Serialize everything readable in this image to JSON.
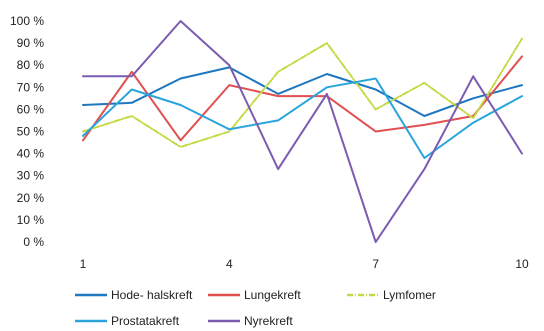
{
  "chart_data": {
    "type": "line",
    "x": [
      1,
      2,
      3,
      4,
      5,
      6,
      7,
      8,
      9,
      10
    ],
    "x_tick_labels": [
      "1",
      "4",
      "7",
      "10"
    ],
    "x_tick_values": [
      1,
      4,
      7,
      10
    ],
    "y_tick_labels": [
      "0 %",
      "10 %",
      "20 %",
      "30 %",
      "40 %",
      "50 %",
      "60 %",
      "70 %",
      "80 %",
      "90 %",
      "100 %"
    ],
    "ylim": [
      0,
      100
    ],
    "grid": false,
    "legend_position": "bottom",
    "series": [
      {
        "name": "Hode- halskreft",
        "color": "#1f77c0",
        "values": [
          62,
          63,
          74,
          79,
          67,
          76,
          69,
          57,
          65,
          71
        ]
      },
      {
        "name": "Lungekreft",
        "color": "#e05050",
        "values": [
          46,
          77,
          46,
          71,
          66,
          66,
          50,
          53,
          57,
          84
        ]
      },
      {
        "name": "Lymfomer",
        "color": "#c5d945",
        "dashed": true,
        "values": [
          50,
          57,
          43,
          50,
          77,
          90,
          60,
          72,
          56,
          92
        ]
      },
      {
        "name": "Prostatakreft",
        "color": "#2aa5dc",
        "values": [
          48,
          69,
          62,
          51,
          55,
          70,
          74,
          38,
          54,
          66
        ]
      },
      {
        "name": "Nyrekreft",
        "color": "#7b5cb0",
        "values": [
          75,
          75,
          100,
          80,
          33,
          67,
          0,
          33,
          75,
          40
        ]
      }
    ]
  }
}
